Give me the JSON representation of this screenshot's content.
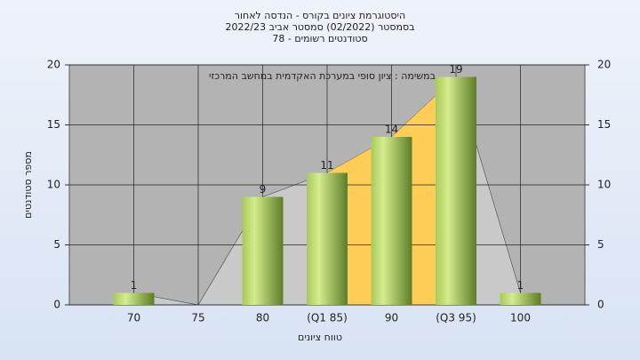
{
  "chart_data": {
    "type": "bar",
    "title": [
      "היסטוגרמת ציונים בקורס - הנדסה לאחור",
      "בסמסטר  (02/2022)  סמסטר אביב 2022/23",
      "סטודנטים רשומים - 78"
    ],
    "annotation": "במשימה : ציון סופי במערכת האקדמית במחשב המרכזי",
    "x_label": "טווח ציונים",
    "y_label": "מספר סטודנטים",
    "categories": [
      "70",
      "75",
      "80",
      "(Q1 85)",
      "90",
      "(Q3 95)",
      "100"
    ],
    "values": [
      1,
      0,
      9,
      11,
      14,
      19,
      1
    ],
    "color": "#8fb046",
    "ylim": [
      0,
      20
    ],
    "yticks": [
      0,
      5,
      10,
      15,
      20
    ],
    "y2lim": [
      0,
      20
    ],
    "y2ticks": [
      0,
      5,
      10,
      15,
      20
    ],
    "grid": true
  }
}
